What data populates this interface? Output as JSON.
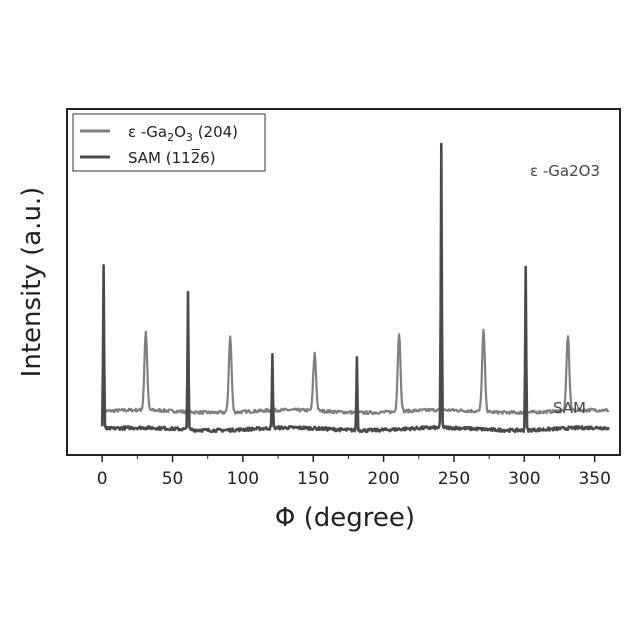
{
  "chart_data": {
    "type": "line",
    "title": "",
    "xlabel": "Φ (degree)",
    "ylabel": "Intensity (a.u.)",
    "xlim": [
      -25,
      368
    ],
    "xticks": [
      0,
      50,
      100,
      150,
      200,
      250,
      300,
      350
    ],
    "xtick_labels": [
      "0",
      "50",
      "100",
      "150",
      "200",
      "250",
      "300",
      "350"
    ],
    "y_ticks_shown": false,
    "grid": false,
    "legend": {
      "placement": "top-left",
      "entries": [
        {
          "series_ref": 0,
          "parts": [
            "ε -Ga",
            "2",
            "O",
            "3",
            " (204)"
          ]
        },
        {
          "series_ref": 1,
          "parts": [
            "SAM (11",
            "2",
            "̅",
            "6)"
          ],
          "display": "SAM (112̅6)"
        }
      ]
    },
    "series": [
      {
        "name": "ε -Ga2O3 (204)",
        "label_parts": [
          "ε -Ga",
          "2",
          "O",
          "3"
        ],
        "color": "#808080",
        "baseline": 0.68,
        "x_range": [
          0,
          360
        ],
        "peaks": [
          {
            "x": 31,
            "y": 3.0
          },
          {
            "x": 91,
            "y": 2.9
          },
          {
            "x": 151,
            "y": 2.2
          },
          {
            "x": 211,
            "y": 3.0
          },
          {
            "x": 271,
            "y": 3.1
          },
          {
            "x": 331,
            "y": 2.9
          }
        ]
      },
      {
        "name": "SAM (112̅6)",
        "label_parts": [
          "SAM"
        ],
        "color": "#4a4a4a",
        "baseline": 0.0,
        "x_range": [
          0,
          360
        ],
        "peaks": [
          {
            "x": 1,
            "y": 6.3
          },
          {
            "x": 61,
            "y": 5.3
          },
          {
            "x": 121,
            "y": 2.8
          },
          {
            "x": 181,
            "y": 2.8
          },
          {
            "x": 241,
            "y": 10.9
          },
          {
            "x": 301,
            "y": 6.3
          }
        ]
      }
    ]
  }
}
